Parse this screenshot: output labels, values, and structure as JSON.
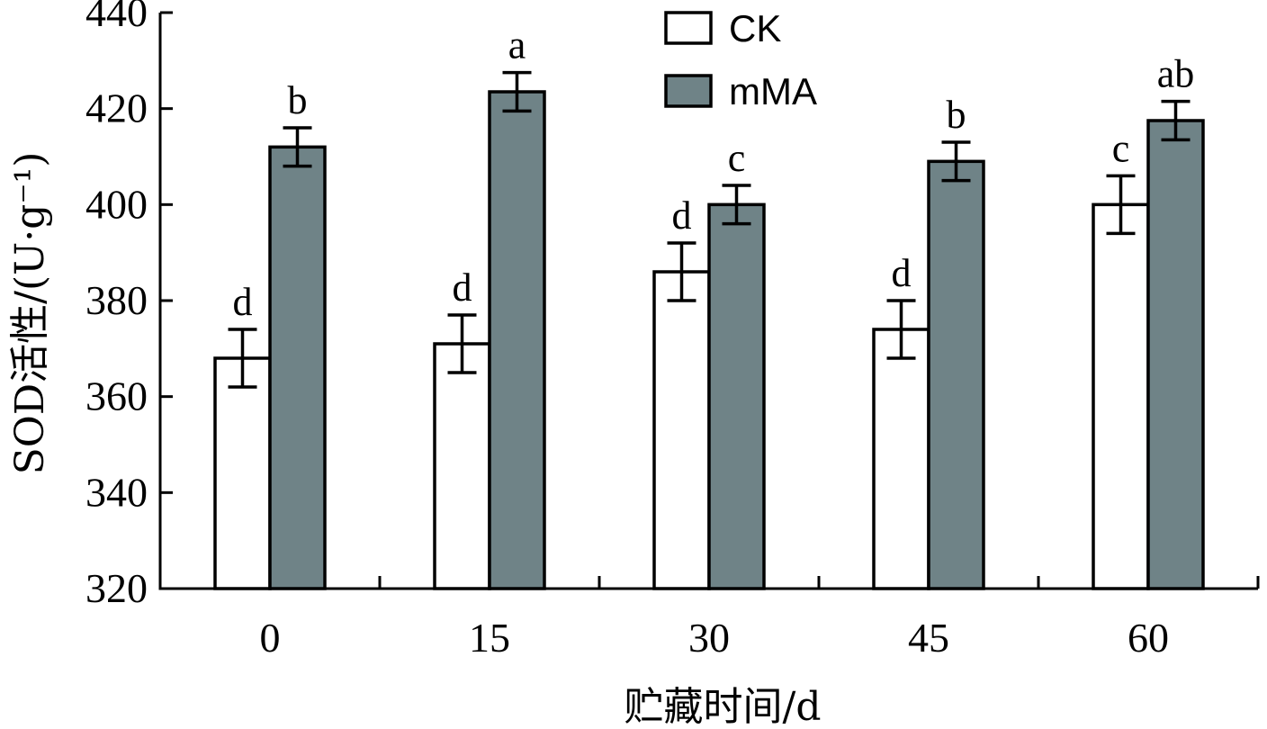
{
  "chart_data": {
    "type": "bar",
    "categories": [
      "0",
      "15",
      "30",
      "45",
      "60"
    ],
    "series": [
      {
        "name": "CK",
        "color": "#ffffff",
        "values": [
          368,
          371,
          386,
          374,
          400
        ],
        "errors": [
          6,
          6,
          6,
          6,
          6
        ],
        "significance": [
          "d",
          "d",
          "d",
          "d",
          "c"
        ]
      },
      {
        "name": "mMA",
        "color": "#6f8387",
        "values": [
          412,
          423.5,
          400,
          409,
          417.5
        ],
        "errors": [
          4,
          4,
          4,
          4,
          4
        ],
        "significance": [
          "b",
          "a",
          "c",
          "b",
          "ab"
        ]
      }
    ],
    "ylim": [
      320,
      440
    ],
    "yticks": [
      "320",
      "340",
      "360",
      "380",
      "400",
      "420",
      "440"
    ],
    "xlabel": "贮藏时间/d",
    "ylabel": "SOD活性/(U·g⁻¹)",
    "legend_position": "top-center",
    "grid": false
  }
}
